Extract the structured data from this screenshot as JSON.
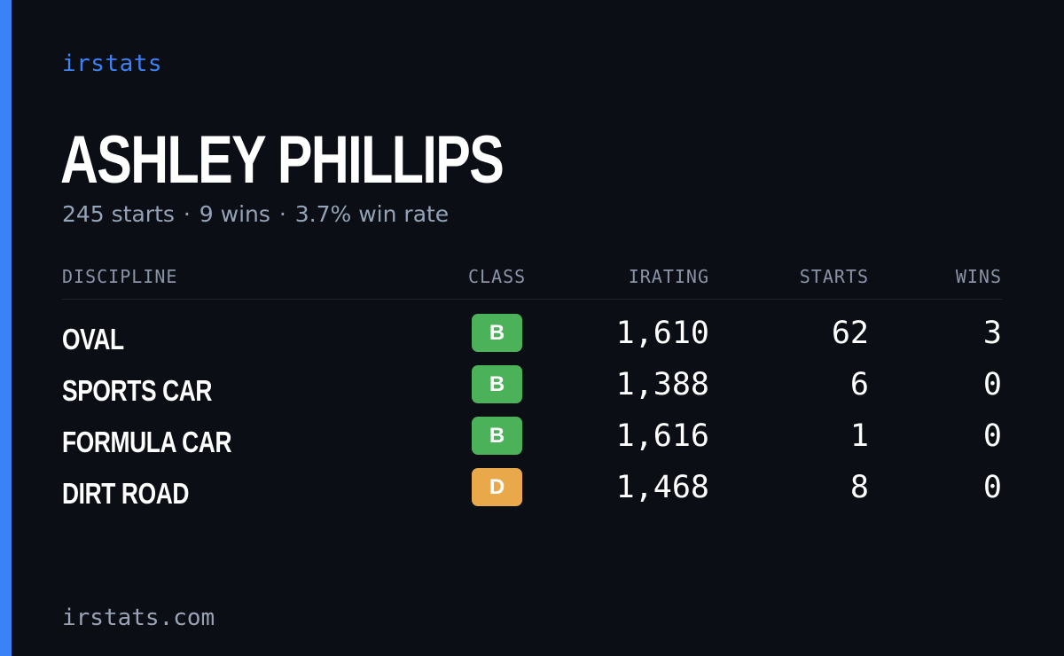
{
  "brand": "irstats",
  "driver": {
    "name": "ASHLEY PHILLIPS",
    "starts_text": "245 starts",
    "wins_text": "9 wins",
    "win_rate_text": "3.7% win rate",
    "separator": "·"
  },
  "table": {
    "headers": {
      "discipline": "DISCIPLINE",
      "class": "CLASS",
      "irating": "IRATING",
      "starts": "STARTS",
      "wins": "WINS"
    },
    "rows": [
      {
        "discipline": "OVAL",
        "class": "B",
        "class_color": "#4cb25a",
        "irating": "1,610",
        "starts": "62",
        "wins": "3"
      },
      {
        "discipline": "SPORTS CAR",
        "class": "B",
        "class_color": "#4cb25a",
        "irating": "1,388",
        "starts": "6",
        "wins": "0"
      },
      {
        "discipline": "FORMULA CAR",
        "class": "B",
        "class_color": "#4cb25a",
        "irating": "1,616",
        "starts": "1",
        "wins": "0"
      },
      {
        "discipline": "DIRT ROAD",
        "class": "D",
        "class_color": "#e9a94b",
        "irating": "1,468",
        "starts": "8",
        "wins": "0"
      }
    ]
  },
  "footer": "irstats.com",
  "colors": {
    "background": "#0b0e14",
    "accent": "#3b82f6",
    "class_b": "#4cb25a",
    "class_d": "#e9a94b"
  }
}
